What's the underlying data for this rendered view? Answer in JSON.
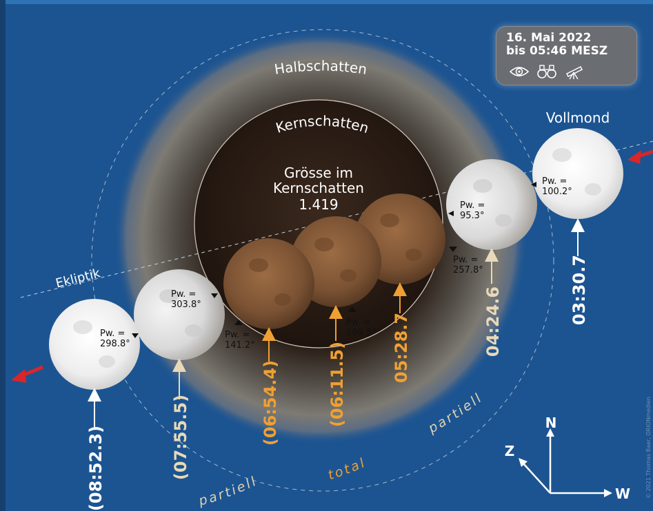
{
  "event": {
    "date": "16. Mai 2022",
    "time_until": "bis 05:46 MESZ",
    "visibility_icons": [
      "eye-icon",
      "binoculars-icon",
      "telescope-icon"
    ]
  },
  "labels": {
    "halbschatten": "Halbschatten",
    "kernschatten": "Kernschatten",
    "groesse_line1": "Grösse im",
    "groesse_line2": "Kernschatten",
    "groesse_value": "1.419",
    "ekliptik": "Ekliptik",
    "vollmond": "Vollmond",
    "partiell_right": "partiell",
    "total": "total",
    "partiell_left": "partiell"
  },
  "compass": {
    "north": "N",
    "east": "Z",
    "west": "W"
  },
  "moons": [
    {
      "time": "03:30.7",
      "pw": "Pw. =\n100.2°",
      "phase": "full"
    },
    {
      "time": "04:24.6",
      "pw": "Pw. =\n95.3°",
      "pw2": "Pw. =\n257.8°",
      "phase": "partial"
    },
    {
      "time": "05:28.7",
      "phase": "total"
    },
    {
      "time": "(06:11.5)",
      "pw": "Pw. =\n199.5°",
      "phase": "total"
    },
    {
      "time": "(06:54.4)",
      "pw": "Pw. =\n141.2°",
      "phase": "total"
    },
    {
      "time": "(07:55.5)",
      "pw": "Pw. =\n303.8°",
      "phase": "partial"
    },
    {
      "time": "(08:52.3)",
      "pw": "Pw. =\n298.8°",
      "phase": "full"
    }
  ],
  "pw_labels": {
    "p1a": "Pw. =",
    "p1b": "100.2°",
    "p2a": "Pw. =",
    "p2b": "95.3°",
    "p3a": "Pw. =",
    "p3b": "257.8°",
    "p4a": "Pw. =",
    "p4b": "199.5°",
    "p5a": "Pw. =",
    "p5b": "141.2°",
    "p6a": "Pw. =",
    "p6b": "303.8°",
    "p7a": "Pw. =",
    "p7b": "298.8°"
  },
  "times": {
    "t1": "03:30.7",
    "t2": "04:24.6",
    "t3": "05:28.7",
    "t4": "(06:11.5)",
    "t5": "(06:54.4)",
    "t6": "(07:55.5)",
    "t7": "(08:52.3)"
  },
  "colors": {
    "background": "#1c5491",
    "umbra": "#2b1d14",
    "penumbra_glow": "#8a8478",
    "orange_time": "#f0a033",
    "beige_time": "#e8d9b8",
    "white_time": "#ffffff",
    "arrow_red": "#d8262b"
  },
  "credit": "© 2021 Thomas Baer, ORIONmedien"
}
